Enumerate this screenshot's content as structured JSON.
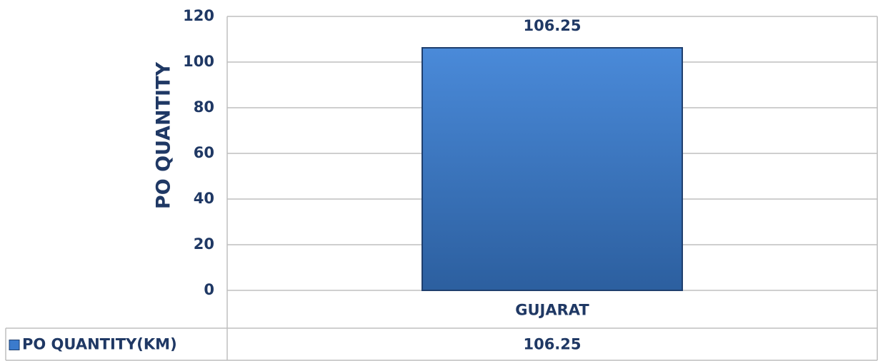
{
  "chart_data": {
    "type": "bar",
    "ylabel": "PO QUANTITY",
    "categories": [
      "GUJARAT"
    ],
    "series": [
      {
        "name": "PO QUANTITY(KM)",
        "color": "#3b7bcc",
        "values": [
          106.25
        ]
      }
    ],
    "ylim": [
      0,
      120
    ],
    "yticks": [
      0,
      20,
      40,
      60,
      80,
      100,
      120
    ],
    "grid": true
  }
}
